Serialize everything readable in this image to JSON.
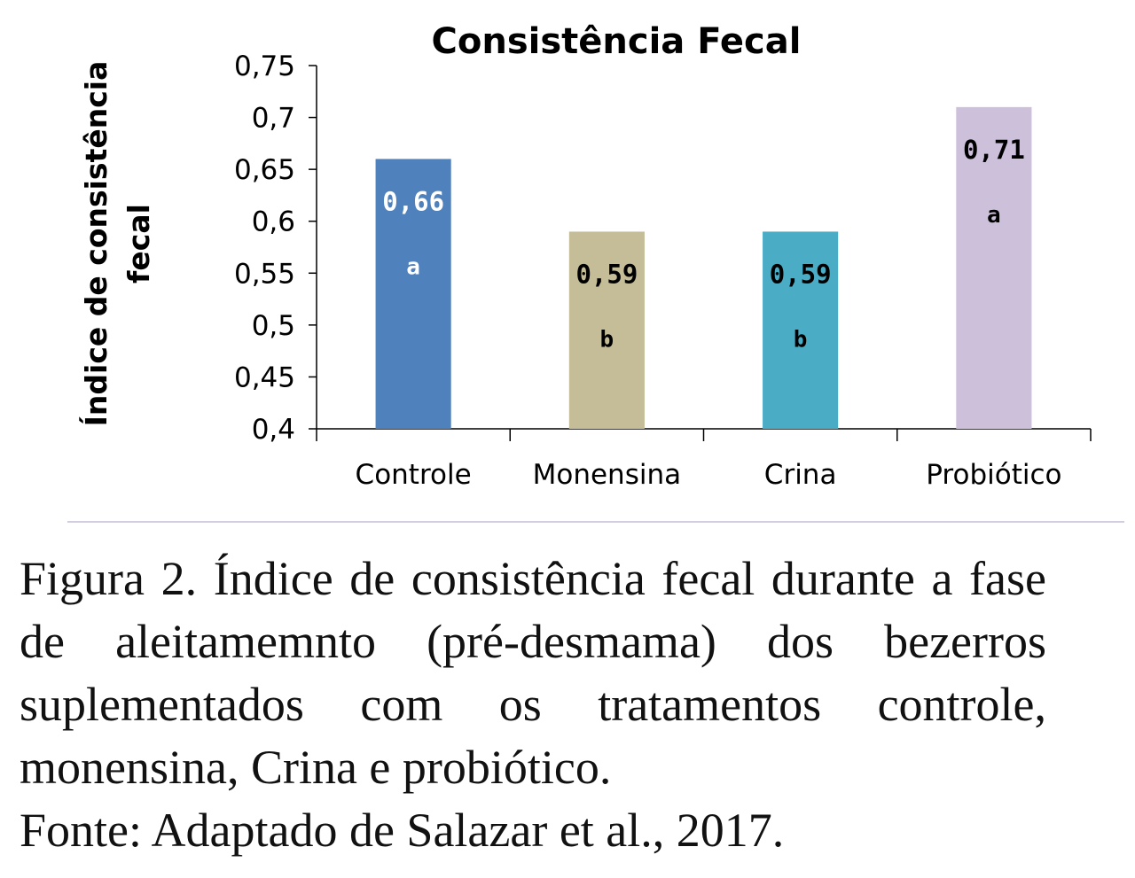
{
  "chart_data": {
    "type": "bar",
    "title": "Consistência Fecal",
    "xlabel": "",
    "ylabel_lines": [
      "Índice de consistência",
      "fecal"
    ],
    "ylim": [
      0.4,
      0.75
    ],
    "yticks": [
      "0,4",
      "0,45",
      "0,5",
      "0,55",
      "0,6",
      "0,65",
      "0,7",
      "0,75"
    ],
    "categories": [
      "Controle",
      "Monensina",
      "Crina",
      "Probiótico"
    ],
    "values": [
      0.66,
      0.59,
      0.59,
      0.71
    ],
    "value_labels": [
      "0,66",
      "0,59",
      "0,59",
      "0,71"
    ],
    "letters": [
      "a",
      "b",
      "b",
      "a"
    ],
    "colors": [
      "#4f81bd",
      "#c4bd97",
      "#4bacc6",
      "#ccc0da"
    ],
    "value_label_colors": [
      "#ffffff",
      "#000000",
      "#000000",
      "#000000"
    ],
    "grid": false,
    "legend": "none"
  },
  "caption": {
    "text": "Figura 2. Índice de consistência fecal durante a fase de aleitamemnto (pré-desmama) dos bezerros suplementados com os tratamentos controle, monensina, Crina e probiótico.",
    "source": "Fonte: Adaptado de Salazar et al., 2017."
  }
}
